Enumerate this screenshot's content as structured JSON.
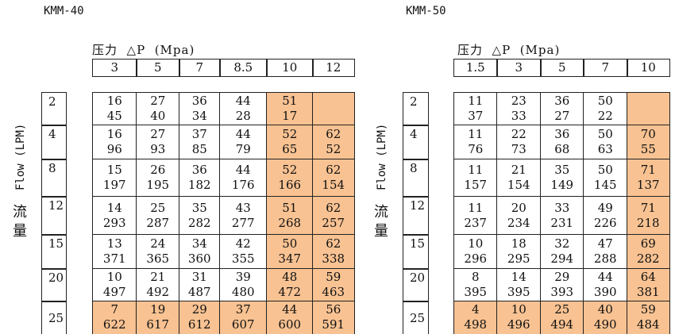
{
  "highlight_color": "#f8c292",
  "tables": [
    {
      "title": "KMM-40",
      "pressure_label": "压力  △P  (Mpa)",
      "flow_label": "Flow (LPM)",
      "flow_label_cn": [
        "流",
        "量"
      ],
      "pressures": [
        "3",
        "5",
        "7",
        "8.5",
        "10",
        "12"
      ],
      "flows": [
        "2",
        "4",
        "8",
        "12",
        "15",
        "20",
        "25"
      ],
      "highlight_columns": [
        "10",
        "12"
      ],
      "highlight_rows": [
        "25"
      ],
      "cells": [
        [
          [
            "16",
            "45"
          ],
          [
            "27",
            "40"
          ],
          [
            "36",
            "34"
          ],
          [
            "44",
            "28"
          ],
          [
            "51",
            "17"
          ],
          [
            "",
            ""
          ]
        ],
        [
          [
            "16",
            "96"
          ],
          [
            "27",
            "93"
          ],
          [
            "37",
            "85"
          ],
          [
            "44",
            "79"
          ],
          [
            "52",
            "65"
          ],
          [
            "62",
            "52"
          ]
        ],
        [
          [
            "15",
            "197"
          ],
          [
            "26",
            "195"
          ],
          [
            "36",
            "182"
          ],
          [
            "44",
            "176"
          ],
          [
            "52",
            "166"
          ],
          [
            "62",
            "154"
          ]
        ],
        [
          [
            "14",
            "293"
          ],
          [
            "25",
            "287"
          ],
          [
            "35",
            "282"
          ],
          [
            "43",
            "277"
          ],
          [
            "51",
            "268"
          ],
          [
            "62",
            "257"
          ]
        ],
        [
          [
            "13",
            "371"
          ],
          [
            "24",
            "365"
          ],
          [
            "34",
            "360"
          ],
          [
            "42",
            "355"
          ],
          [
            "50",
            "347"
          ],
          [
            "62",
            "338"
          ]
        ],
        [
          [
            "10",
            "497"
          ],
          [
            "21",
            "492"
          ],
          [
            "31",
            "487"
          ],
          [
            "39",
            "480"
          ],
          [
            "48",
            "472"
          ],
          [
            "59",
            "463"
          ]
        ],
        [
          [
            "7",
            "622"
          ],
          [
            "19",
            "617"
          ],
          [
            "29",
            "612"
          ],
          [
            "37",
            "607"
          ],
          [
            "44",
            "600"
          ],
          [
            "56",
            "591"
          ]
        ]
      ]
    },
    {
      "title": "KMM-50",
      "pressure_label": "压力  △P  (Mpa)",
      "flow_label": "Flow (LPM)",
      "flow_label_cn": [
        "流",
        "量"
      ],
      "pressures": [
        "1.5",
        "3",
        "5",
        "7",
        "10"
      ],
      "flows": [
        "2",
        "4",
        "8",
        "12",
        "15",
        "20",
        "25"
      ],
      "highlight_columns": [
        "10"
      ],
      "highlight_rows": [
        "25"
      ],
      "cells": [
        [
          [
            "11",
            "37"
          ],
          [
            "23",
            "33"
          ],
          [
            "36",
            "27"
          ],
          [
            "50",
            "22"
          ],
          [
            "",
            ""
          ]
        ],
        [
          [
            "11",
            "76"
          ],
          [
            "22",
            "73"
          ],
          [
            "36",
            "68"
          ],
          [
            "50",
            "63"
          ],
          [
            "70",
            "55"
          ]
        ],
        [
          [
            "11",
            "157"
          ],
          [
            "21",
            "154"
          ],
          [
            "35",
            "149"
          ],
          [
            "50",
            "145"
          ],
          [
            "71",
            "137"
          ]
        ],
        [
          [
            "11",
            "237"
          ],
          [
            "20",
            "234"
          ],
          [
            "33",
            "231"
          ],
          [
            "49",
            "226"
          ],
          [
            "71",
            "218"
          ]
        ],
        [
          [
            "10",
            "296"
          ],
          [
            "18",
            "295"
          ],
          [
            "32",
            "294"
          ],
          [
            "47",
            "288"
          ],
          [
            "69",
            "282"
          ]
        ],
        [
          [
            "8",
            "395"
          ],
          [
            "14",
            "395"
          ],
          [
            "29",
            "393"
          ],
          [
            "44",
            "390"
          ],
          [
            "64",
            "381"
          ]
        ],
        [
          [
            "4",
            "498"
          ],
          [
            "10",
            "496"
          ],
          [
            "25",
            "494"
          ],
          [
            "40",
            "490"
          ],
          [
            "59",
            "484"
          ]
        ]
      ]
    }
  ]
}
